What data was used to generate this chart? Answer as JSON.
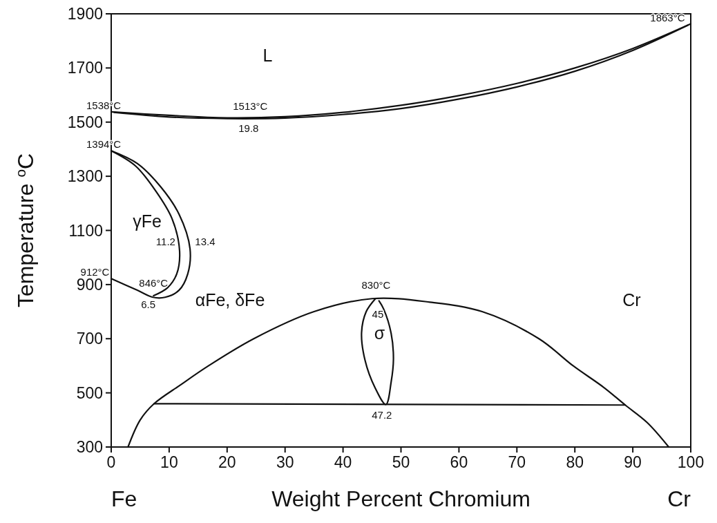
{
  "chart_data": {
    "type": "line",
    "xlabel": "Weight Percent Chromium",
    "ylabel": "Temperature $^{o}$C",
    "xlim": [
      0,
      100
    ],
    "ylim": [
      300,
      1900
    ],
    "xticks": [
      0,
      10,
      20,
      30,
      40,
      50,
      60,
      70,
      80,
      90,
      100
    ],
    "yticks": [
      300,
      500,
      700,
      900,
      1100,
      1300,
      1500,
      1700,
      1900
    ],
    "marker": "none",
    "line_style": "solid",
    "series": [
      {
        "color": "#111111",
        "x": [
          0,
          10,
          20,
          30,
          40,
          50,
          60,
          70,
          80,
          90,
          100
        ],
        "values": [
          1538,
          1525,
          1516,
          1520,
          1536,
          1562,
          1598,
          1643,
          1700,
          1772,
          1863
        ]
      },
      {
        "color": "#111111",
        "x": [
          0.5,
          10,
          20,
          30,
          40,
          50,
          60,
          70,
          80,
          90,
          99.5
        ],
        "values": [
          1536,
          1519,
          1513,
          1515,
          1528,
          1550,
          1585,
          1630,
          1688,
          1765,
          1858
        ]
      },
      {
        "color": "#111111",
        "x": [
          0,
          4.5,
          8.5,
          11.7,
          13.6,
          13.2,
          11.7,
          9.3,
          7.2,
          4.5,
          0
        ],
        "values": [
          1394,
          1347,
          1262,
          1160,
          1032,
          939,
          879,
          853,
          853,
          879,
          922
        ]
      },
      {
        "color": "#111111",
        "x": [
          0,
          4.2,
          7.7,
          10.5,
          11.8,
          11.3,
          9.7,
          7.3
        ],
        "values": [
          1394,
          1338,
          1245,
          1143,
          1024,
          939,
          888,
          859
        ]
      },
      {
        "color": "#111111",
        "x": [
          2.9,
          5,
          7.4,
          12,
          16.8,
          24.6,
          35,
          45,
          55,
          64,
          73.8,
          79.7,
          85,
          88.7,
          92.5,
          96.2
        ],
        "values": [
          300,
          400,
          460,
          530,
          600,
          700,
          800,
          848,
          835,
          800,
          700,
          600,
          520,
          455,
          390,
          300
        ]
      },
      {
        "color": "#111111",
        "x": [
          7.4,
          88.7
        ],
        "values": [
          460,
          455
        ]
      },
      {
        "color": "#111111",
        "x": [
          45.6,
          44,
          43.2,
          43.8,
          45.5,
          47.4,
          48.3,
          48.7,
          48.3,
          47,
          46.2
        ],
        "values": [
          848,
          800,
          723,
          620,
          520,
          457,
          540,
          625,
          720,
          810,
          840
        ]
      }
    ],
    "annotations": [
      "1863°C",
      "L",
      "1538°C",
      "1513°C",
      "19.8",
      "1394°C",
      "γFe",
      "11.2",
      "13.4",
      "912°C",
      "846°C",
      "6.5",
      "αFe, δFe",
      "830°C",
      "45",
      "σ",
      "47.2",
      "Cr",
      "Fe",
      "Cr"
    ]
  }
}
